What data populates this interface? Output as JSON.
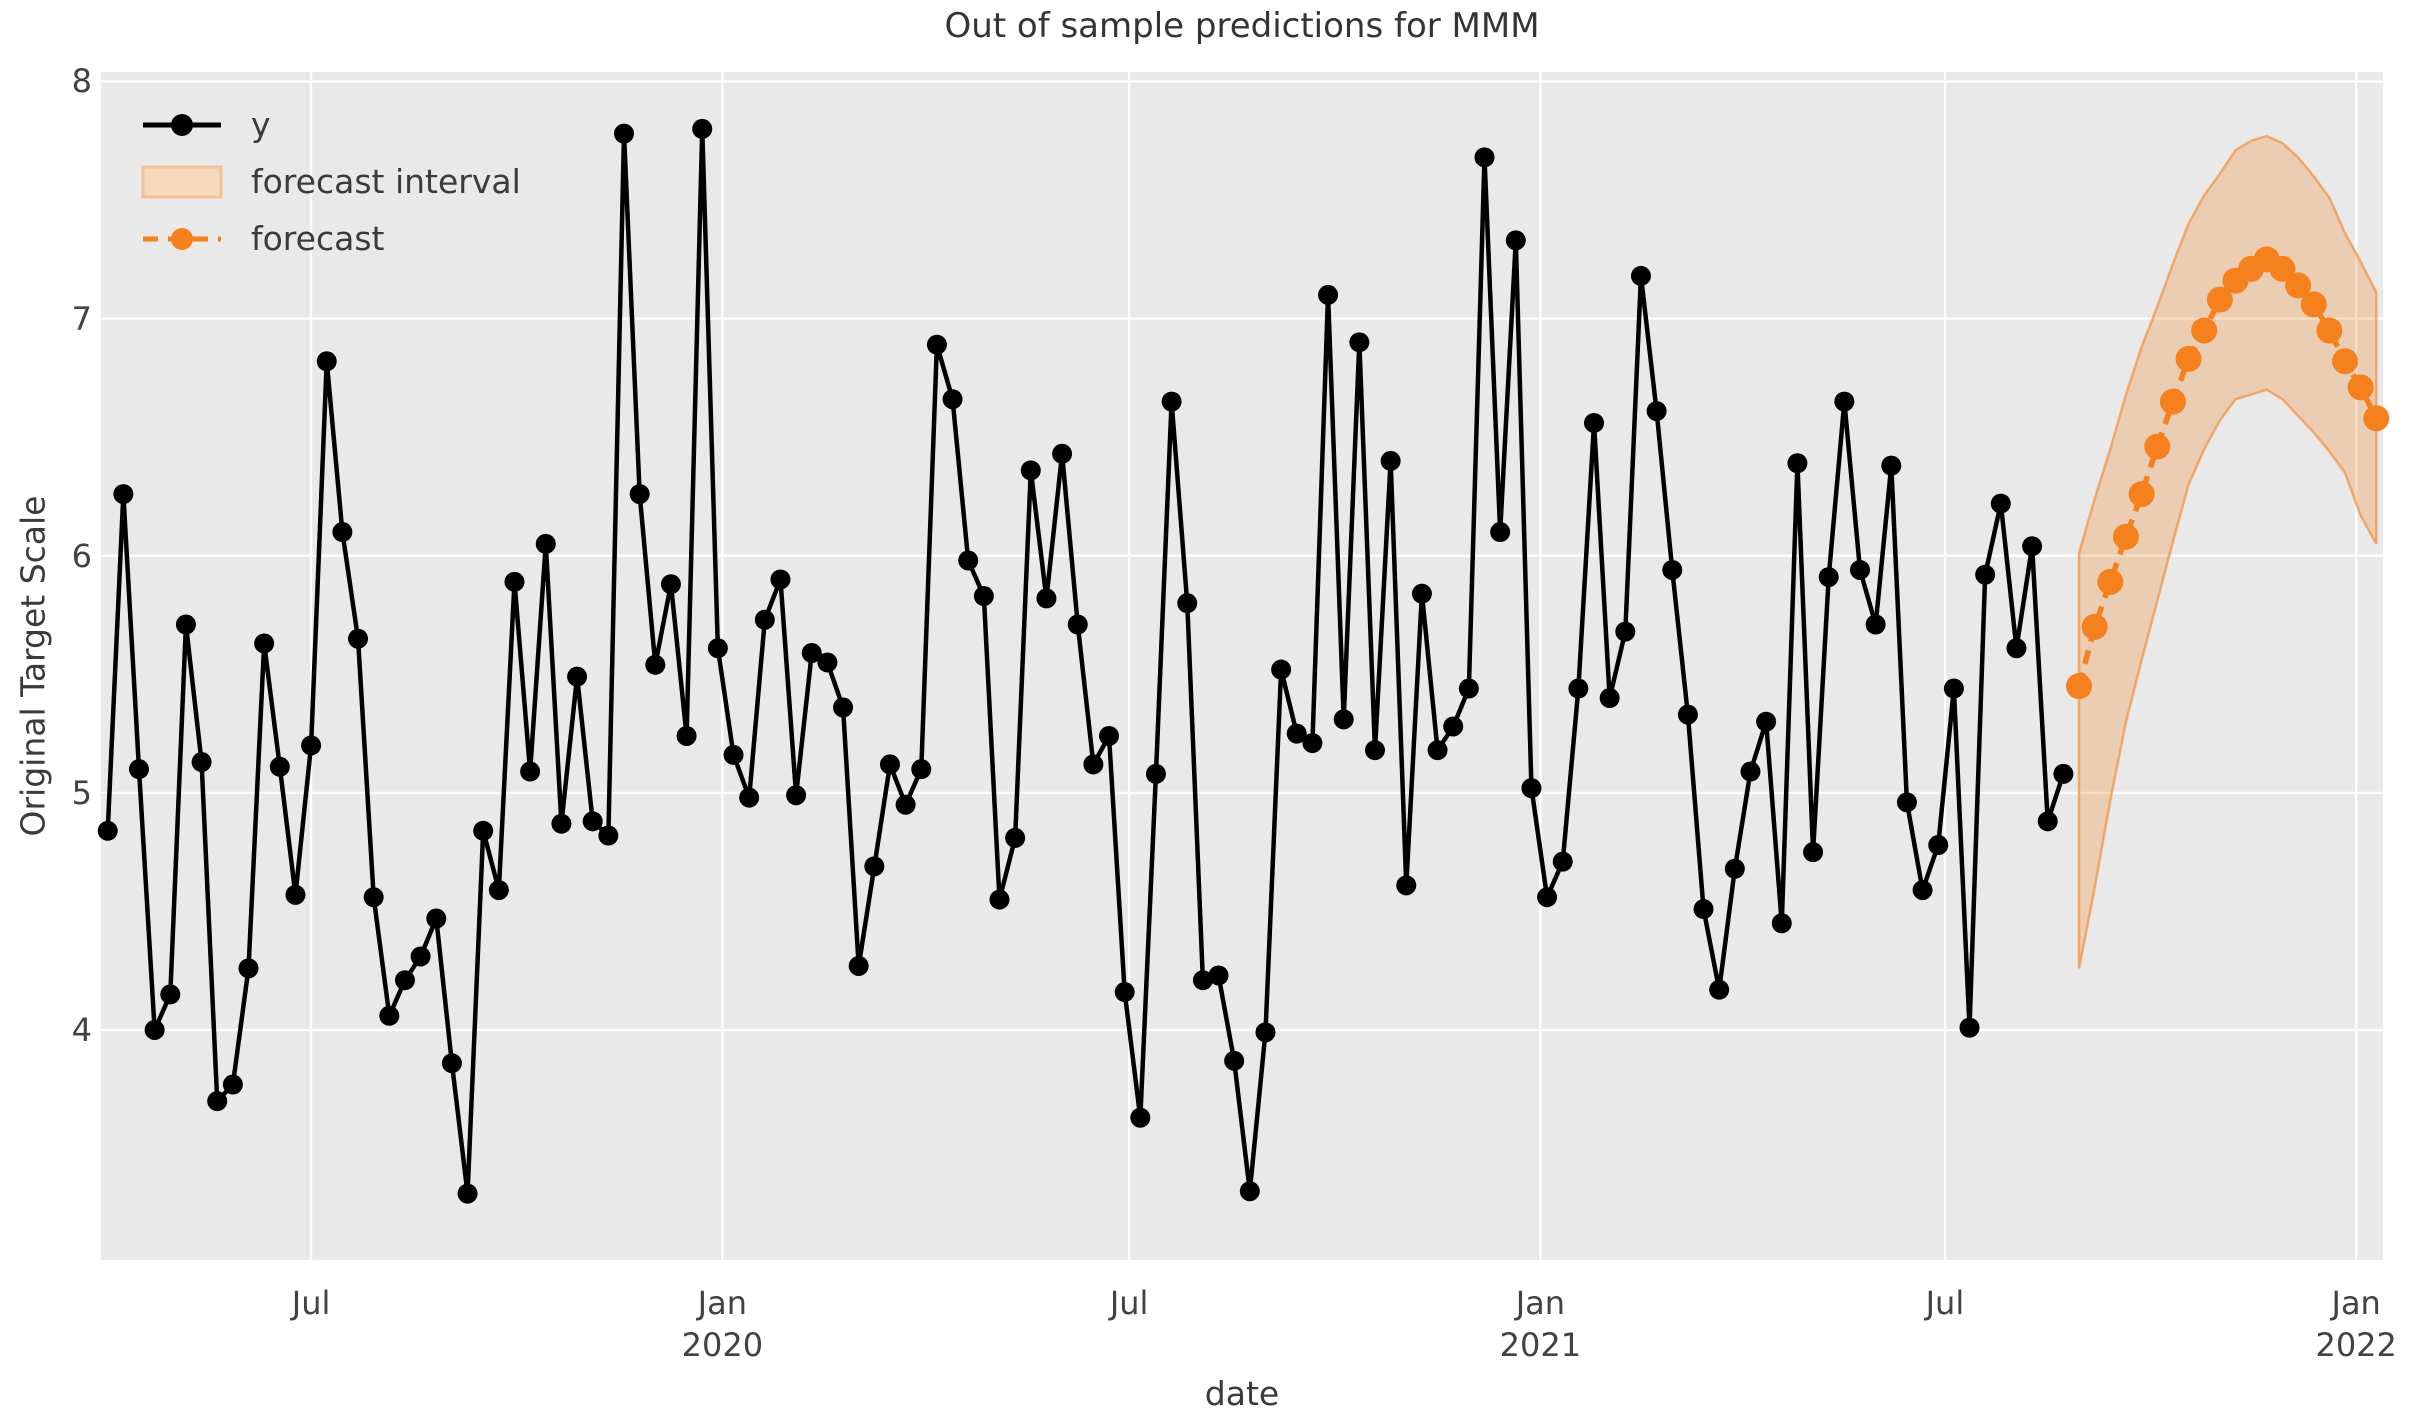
{
  "figure": {
    "title": "Out of sample predictions for MMM",
    "xlabel": "date",
    "ylabel": "Original Target Scale"
  },
  "legend": {
    "items": [
      {
        "label": "y",
        "swatch": "line-with-marker"
      },
      {
        "label": "forecast interval",
        "swatch": "filled-patch"
      },
      {
        "label": "forecast",
        "swatch": "dashed-line-with-marker"
      }
    ]
  },
  "colors": {
    "series": "#000000",
    "forecast": "#f5801e",
    "band_fill": "rgba(245,128,30,0.26)",
    "band_edge": "rgba(243,154,77,0.8)",
    "plot_bg": "#e9e9e9",
    "grid": "#ffffff",
    "text": "#3b3b3b",
    "legend_patch_fill": "#f6d8bc",
    "legend_patch_edge": "#f3c096"
  },
  "axes": {
    "y_ticks": [
      8,
      7,
      6,
      5,
      4
    ],
    "x_ticks": [
      {
        "month": "Jul",
        "year": "",
        "date": "2019-07-01"
      },
      {
        "month": "Jan",
        "year": "2020",
        "date": "2020-01-01"
      },
      {
        "month": "Jul",
        "year": "",
        "date": "2020-07-01"
      },
      {
        "month": "Jan",
        "year": "2021",
        "date": "2021-01-01"
      },
      {
        "month": "Jul",
        "year": "",
        "date": "2021-07-01"
      },
      {
        "month": "Jan",
        "year": "2022",
        "date": "2022-01-01"
      }
    ],
    "xlim": [
      "2019-03-29",
      "2022-01-13"
    ],
    "ylim": [
      3.03,
      8.04
    ],
    "grid": true,
    "legend_position": "upper left"
  },
  "chart_data": {
    "type": "line",
    "title": "Out of sample predictions for MMM",
    "xlabel": "date",
    "ylabel": "Original Target Scale",
    "frequency": "weekly",
    "series": [
      {
        "name": "y",
        "style": "solid-black-with-markers",
        "start_date": "2019-04-01",
        "freq_days": 7,
        "values": [
          4.84,
          6.26,
          5.1,
          4.0,
          4.15,
          5.71,
          5.13,
          3.7,
          3.77,
          4.26,
          5.63,
          5.11,
          4.57,
          5.2,
          6.82,
          6.1,
          5.65,
          4.56,
          4.06,
          4.21,
          4.31,
          4.47,
          3.86,
          3.31,
          4.84,
          4.59,
          5.89,
          5.09,
          6.05,
          4.87,
          5.49,
          4.88,
          4.82,
          7.78,
          6.26,
          5.54,
          5.88,
          5.24,
          7.8,
          5.61,
          5.16,
          4.98,
          5.73,
          5.9,
          4.99,
          5.59,
          5.55,
          5.36,
          4.27,
          4.69,
          5.12,
          4.95,
          5.1,
          6.89,
          6.66,
          5.98,
          5.83,
          4.55,
          4.81,
          6.36,
          5.82,
          6.43,
          5.71,
          5.12,
          5.24,
          4.16,
          3.63,
          5.08,
          6.65,
          5.8,
          4.21,
          4.23,
          3.87,
          3.32,
          3.99,
          5.52,
          5.25,
          5.21,
          7.1,
          5.31,
          6.9,
          5.18,
          6.4,
          4.61,
          5.84,
          5.18,
          5.28,
          5.44,
          7.68,
          6.1,
          7.33,
          5.02,
          4.56,
          4.71,
          5.44,
          6.56,
          5.4,
          5.68,
          7.18,
          6.61,
          5.94,
          5.33,
          4.51,
          4.17,
          4.68,
          5.09,
          5.3,
          4.45,
          6.39,
          4.75,
          5.91,
          6.65,
          5.94,
          5.71,
          6.38,
          4.96,
          4.59,
          4.78,
          5.44,
          4.01,
          5.92,
          6.22,
          5.61,
          6.04,
          4.88,
          5.08
        ]
      },
      {
        "name": "forecast",
        "style": "dashed-orange-with-markers",
        "start_date": "2021-08-30",
        "freq_days": 7,
        "values": [
          5.45,
          5.7,
          5.89,
          6.08,
          6.26,
          6.46,
          6.65,
          6.83,
          6.95,
          7.08,
          7.16,
          7.21,
          7.25,
          7.21,
          7.14,
          7.06,
          6.95,
          6.82,
          6.71,
          6.58
        ]
      }
    ],
    "forecast_interval": {
      "name": "forecast interval",
      "start_date": "2021-08-30",
      "freq_days": 7,
      "upper": [
        6.01,
        6.24,
        6.45,
        6.68,
        6.88,
        7.05,
        7.23,
        7.4,
        7.52,
        7.61,
        7.71,
        7.75,
        7.77,
        7.74,
        7.68,
        7.6,
        7.51,
        7.36,
        7.24,
        7.11
      ],
      "lower": [
        4.26,
        4.6,
        4.97,
        5.3,
        5.56,
        5.81,
        6.06,
        6.3,
        6.45,
        6.57,
        6.66,
        6.68,
        6.7,
        6.66,
        6.59,
        6.52,
        6.44,
        6.35,
        6.17,
        6.05
      ]
    }
  }
}
